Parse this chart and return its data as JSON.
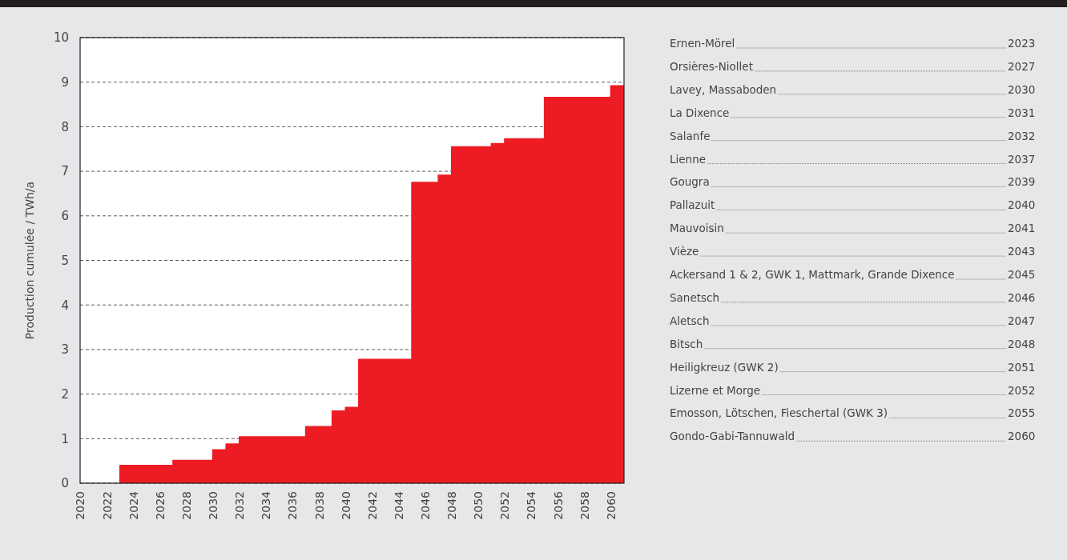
{
  "chart_data": [
    {
      "type": "area",
      "ylabel": "Production cumulée / TWh/a",
      "xlim": [
        2020,
        2061
      ],
      "ylim": [
        0,
        10
      ],
      "yticks": [
        0,
        1,
        2,
        3,
        4,
        5,
        6,
        7,
        8,
        9,
        10
      ],
      "xticks": [
        2020,
        2022,
        2024,
        2026,
        2028,
        2030,
        2032,
        2034,
        2036,
        2038,
        2040,
        2042,
        2044,
        2046,
        2048,
        2050,
        2052,
        2054,
        2056,
        2058,
        2060
      ],
      "grid": "y",
      "series": [
        {
          "color": "#ed1c24",
          "x": [
            2023,
            2023,
            2027,
            2027,
            2030,
            2030,
            2031,
            2031,
            2032,
            2032,
            2037,
            2037,
            2039,
            2039,
            2040,
            2040,
            2041,
            2041,
            2045,
            2045,
            2047,
            2047,
            2048,
            2048,
            2051,
            2051,
            2052,
            2052,
            2055,
            2055,
            2060,
            2060,
            2061
          ],
          "values": [
            0,
            0.4,
            0.4,
            0.51,
            0.51,
            0.75,
            0.75,
            0.88,
            0.88,
            1.04,
            1.04,
            1.27,
            1.27,
            1.62,
            1.62,
            1.7,
            1.7,
            2.78,
            2.78,
            6.75,
            6.75,
            6.91,
            6.91,
            7.55,
            7.55,
            7.62,
            7.62,
            7.73,
            7.73,
            8.66,
            8.66,
            8.92,
            8.92
          ]
        }
      ]
    },
    {
      "type": "other",
      "data_labels": true,
      "categories": [
        "Ernen-Mörel",
        "Orsières-Niollet",
        "Lavey, Massaboden",
        "La Dixence",
        "Salanfe",
        "Lienne",
        "Gougra",
        "Pallazuit",
        "Mauvoisin",
        "Vièze",
        "Ackersand 1 & 2, GWK 1, Mattmark, Grande Dixence",
        "Sanetsch",
        "Aletsch",
        "Bitsch",
        "Heiligkreuz (GWK 2)",
        "Lizerne et Morge",
        "Emosson, Lötschen, Fieschertal (GWK 3)",
        "Gondo-Gabi-Tannuwald"
      ],
      "values": [
        2023,
        2027,
        2030,
        2031,
        2032,
        2037,
        2039,
        2040,
        2041,
        2043,
        2045,
        2046,
        2047,
        2048,
        2051,
        2052,
        2055,
        2060
      ]
    }
  ]
}
